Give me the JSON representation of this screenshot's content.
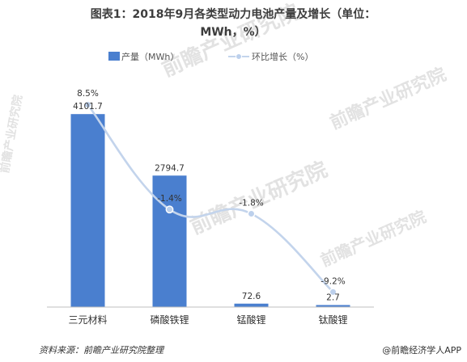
{
  "chart_data": {
    "type": "bar",
    "title_line1": "图表1：2018年9月各类型动力电池产量及增长（单位：",
    "title_line2": "MWh，%）",
    "categories": [
      "三元材料",
      "磷酸铁锂",
      "锰酸锂",
      "钛酸锂"
    ],
    "series": [
      {
        "name": "产量（MWh）",
        "type": "bar",
        "values": [
          4101.7,
          2794.7,
          72.6,
          2.7
        ],
        "value_labels": [
          "4101.7",
          "2794.7",
          "72.6",
          "2.7"
        ],
        "color": "#4a7fcf"
      },
      {
        "name": "环比增长（%）",
        "type": "line",
        "values": [
          8.5,
          -1.4,
          -1.8,
          -9.2
        ],
        "value_labels": [
          "8.5%",
          "-1.4%",
          "-1.8%",
          "-9.2%"
        ],
        "color": "#c3d4ec",
        "marker_color": "#bcd0ec"
      }
    ],
    "ylim_bar": [
      0,
      4500
    ],
    "ylim_line": [
      -12,
      10
    ],
    "grid": false,
    "legend_position": "top"
  },
  "footer": {
    "source": "资料来源：前瞻产业研究院整理",
    "brand": "@前瞻经济学人APP"
  },
  "watermark": {
    "text": "前瞻产业研究院"
  }
}
